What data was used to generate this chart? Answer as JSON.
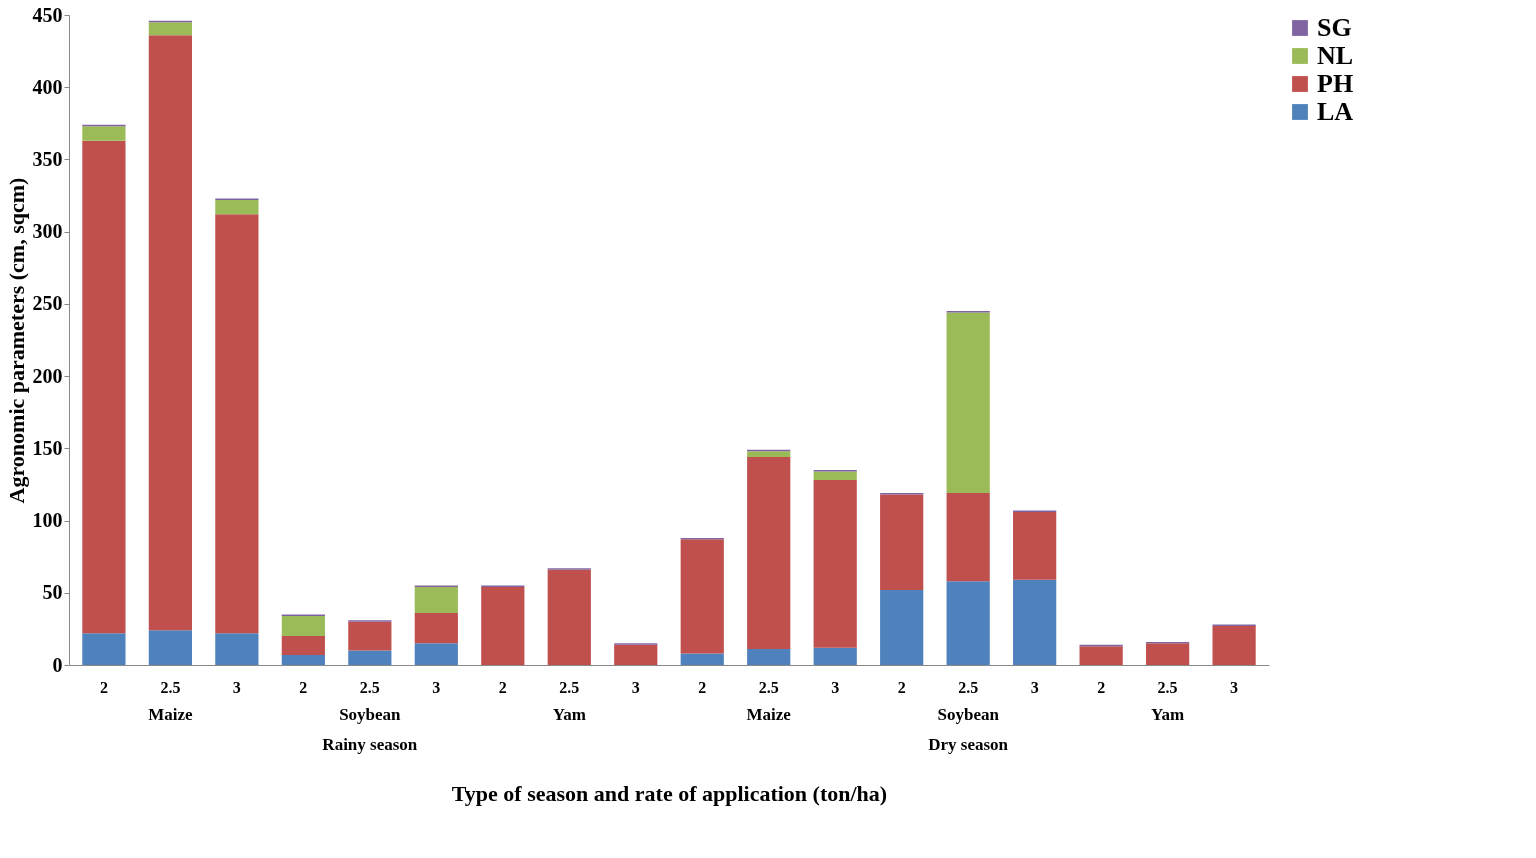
{
  "chart_data": {
    "type": "bar",
    "stacked": true,
    "xlabel": "Type of season and rate of application (ton/ha)",
    "ylabel": "Agronomic parameters (cm, sqcm)",
    "categories": [
      "2",
      "2.5",
      "3",
      "2",
      "2.5",
      "3",
      "2",
      "2.5",
      "3",
      "2",
      "2.5",
      "3",
      "2",
      "2.5",
      "3",
      "2",
      "2.5",
      "3"
    ],
    "annotations": [
      "Maize",
      "Soybean",
      "Yam",
      "Maize",
      "Soybean",
      "Yam",
      "Rainy season",
      "Dry season"
    ],
    "series": [
      {
        "name": "LA",
        "color": "#4f81bd",
        "values": [
          22,
          24,
          22,
          7,
          10,
          15,
          0,
          0,
          0,
          8,
          11,
          12,
          52,
          58,
          59,
          0,
          0,
          0
        ]
      },
      {
        "name": "PH",
        "color": "#c0504d",
        "values": [
          341,
          412,
          290,
          13,
          20,
          21,
          54,
          66,
          14,
          79,
          133,
          116,
          66,
          61,
          47,
          13,
          15,
          27
        ]
      },
      {
        "name": "NL",
        "color": "#9bbb59",
        "values": [
          10,
          9,
          10,
          14,
          0,
          18,
          0,
          0,
          0,
          0,
          4,
          6,
          0,
          125,
          0,
          0,
          0,
          0
        ]
      },
      {
        "name": "SG",
        "color": "#8064a2",
        "values": [
          1,
          1,
          1,
          1,
          1,
          1,
          1,
          1,
          1,
          1,
          1,
          1,
          1,
          1,
          1,
          1,
          1,
          1
        ]
      }
    ],
    "ylim": [
      0,
      450
    ],
    "yticks": [
      0,
      50,
      100,
      150,
      200,
      250,
      300,
      350,
      400,
      450
    ],
    "legend": "right",
    "grid": false
  }
}
